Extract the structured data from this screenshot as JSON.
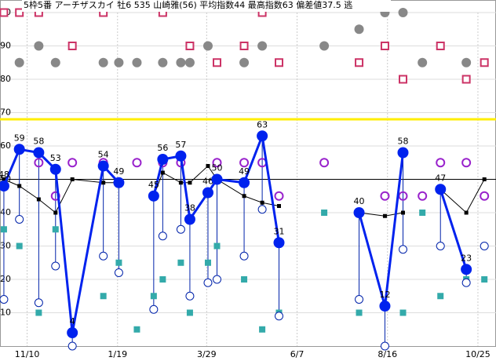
{
  "chart_data": {
    "type": "line",
    "title": "5枠5番 アーチザスカイ 牡6 535 山崎雅(56) 平均指数44 最高指数63 偏差値37.5 逃",
    "x": [
      -18,
      -6,
      9,
      22,
      35,
      59,
      71,
      85,
      98,
      105,
      119,
      126,
      140,
      147,
      168,
      182,
      195,
      230,
      257,
      277,
      291,
      306,
      320,
      340,
      354
    ],
    "xlim": [
      -21,
      363
    ],
    "xticks": [
      {
        "value": 0,
        "label": "11/10"
      },
      {
        "value": 70,
        "label": "1/19"
      },
      {
        "value": 139,
        "label": "3/29"
      },
      {
        "value": 209,
        "label": "6/7"
      },
      {
        "value": 279,
        "label": "8/16"
      },
      {
        "value": 349,
        "label": "10/25"
      }
    ],
    "ylim": [
      0,
      100
    ],
    "yticks": [
      10,
      20,
      30,
      40,
      50,
      60,
      70,
      80,
      90,
      100
    ],
    "grid": true,
    "hlines": [
      {
        "value": 68,
        "color": "#ffee00"
      },
      {
        "value": 50,
        "color": "#000000"
      }
    ],
    "series": [
      {
        "name": "指数",
        "color": "#0022ee",
        "values": [
          48,
          59,
          58,
          53,
          4,
          54,
          49,
          null,
          45,
          56,
          57,
          38,
          46,
          50,
          49,
          63,
          31,
          null,
          40,
          12,
          58,
          null,
          47,
          23,
          null
        ]
      },
      {
        "name": "平均",
        "color": "#000000",
        "values": [
          50,
          48,
          44,
          40,
          50,
          49,
          49,
          null,
          45,
          52,
          49,
          49,
          54,
          50,
          45,
          43,
          42,
          null,
          40,
          39,
          40,
          null,
          47,
          40,
          50
        ]
      },
      {
        "name": "下限",
        "color": "#0022aa",
        "values": [
          14,
          38,
          13,
          24,
          0,
          27,
          22,
          null,
          11,
          33,
          35,
          15,
          19,
          20,
          27,
          41,
          9,
          null,
          14,
          0,
          29,
          null,
          30,
          19,
          30
        ]
      },
      {
        "name": "A",
        "color": "#33aaaa",
        "values": [
          35,
          30,
          10,
          35,
          null,
          15,
          25,
          5,
          15,
          20,
          25,
          10,
          25,
          30,
          20,
          5,
          10,
          40,
          10,
          null,
          10,
          40,
          15,
          20,
          20
        ]
      },
      {
        "name": "B",
        "color": "#9922cc",
        "values": [
          null,
          null,
          55,
          45,
          55,
          55,
          null,
          55,
          45,
          55,
          55,
          null,
          null,
          55,
          55,
          55,
          45,
          55,
          40,
          45,
          45,
          45,
          55,
          55,
          45
        ]
      },
      {
        "name": "C",
        "color": "#888888",
        "values": [
          null,
          85,
          90,
          85,
          null,
          85,
          85,
          85,
          null,
          85,
          85,
          85,
          90,
          null,
          85,
          90,
          null,
          90,
          95,
          100,
          100,
          85,
          null,
          85,
          null
        ]
      },
      {
        "name": "D",
        "color": "#cc3366",
        "values": [
          100,
          100,
          100,
          null,
          90,
          100,
          null,
          null,
          null,
          100,
          null,
          90,
          null,
          85,
          90,
          100,
          85,
          null,
          85,
          90,
          80,
          null,
          90,
          80,
          85
        ]
      }
    ]
  }
}
